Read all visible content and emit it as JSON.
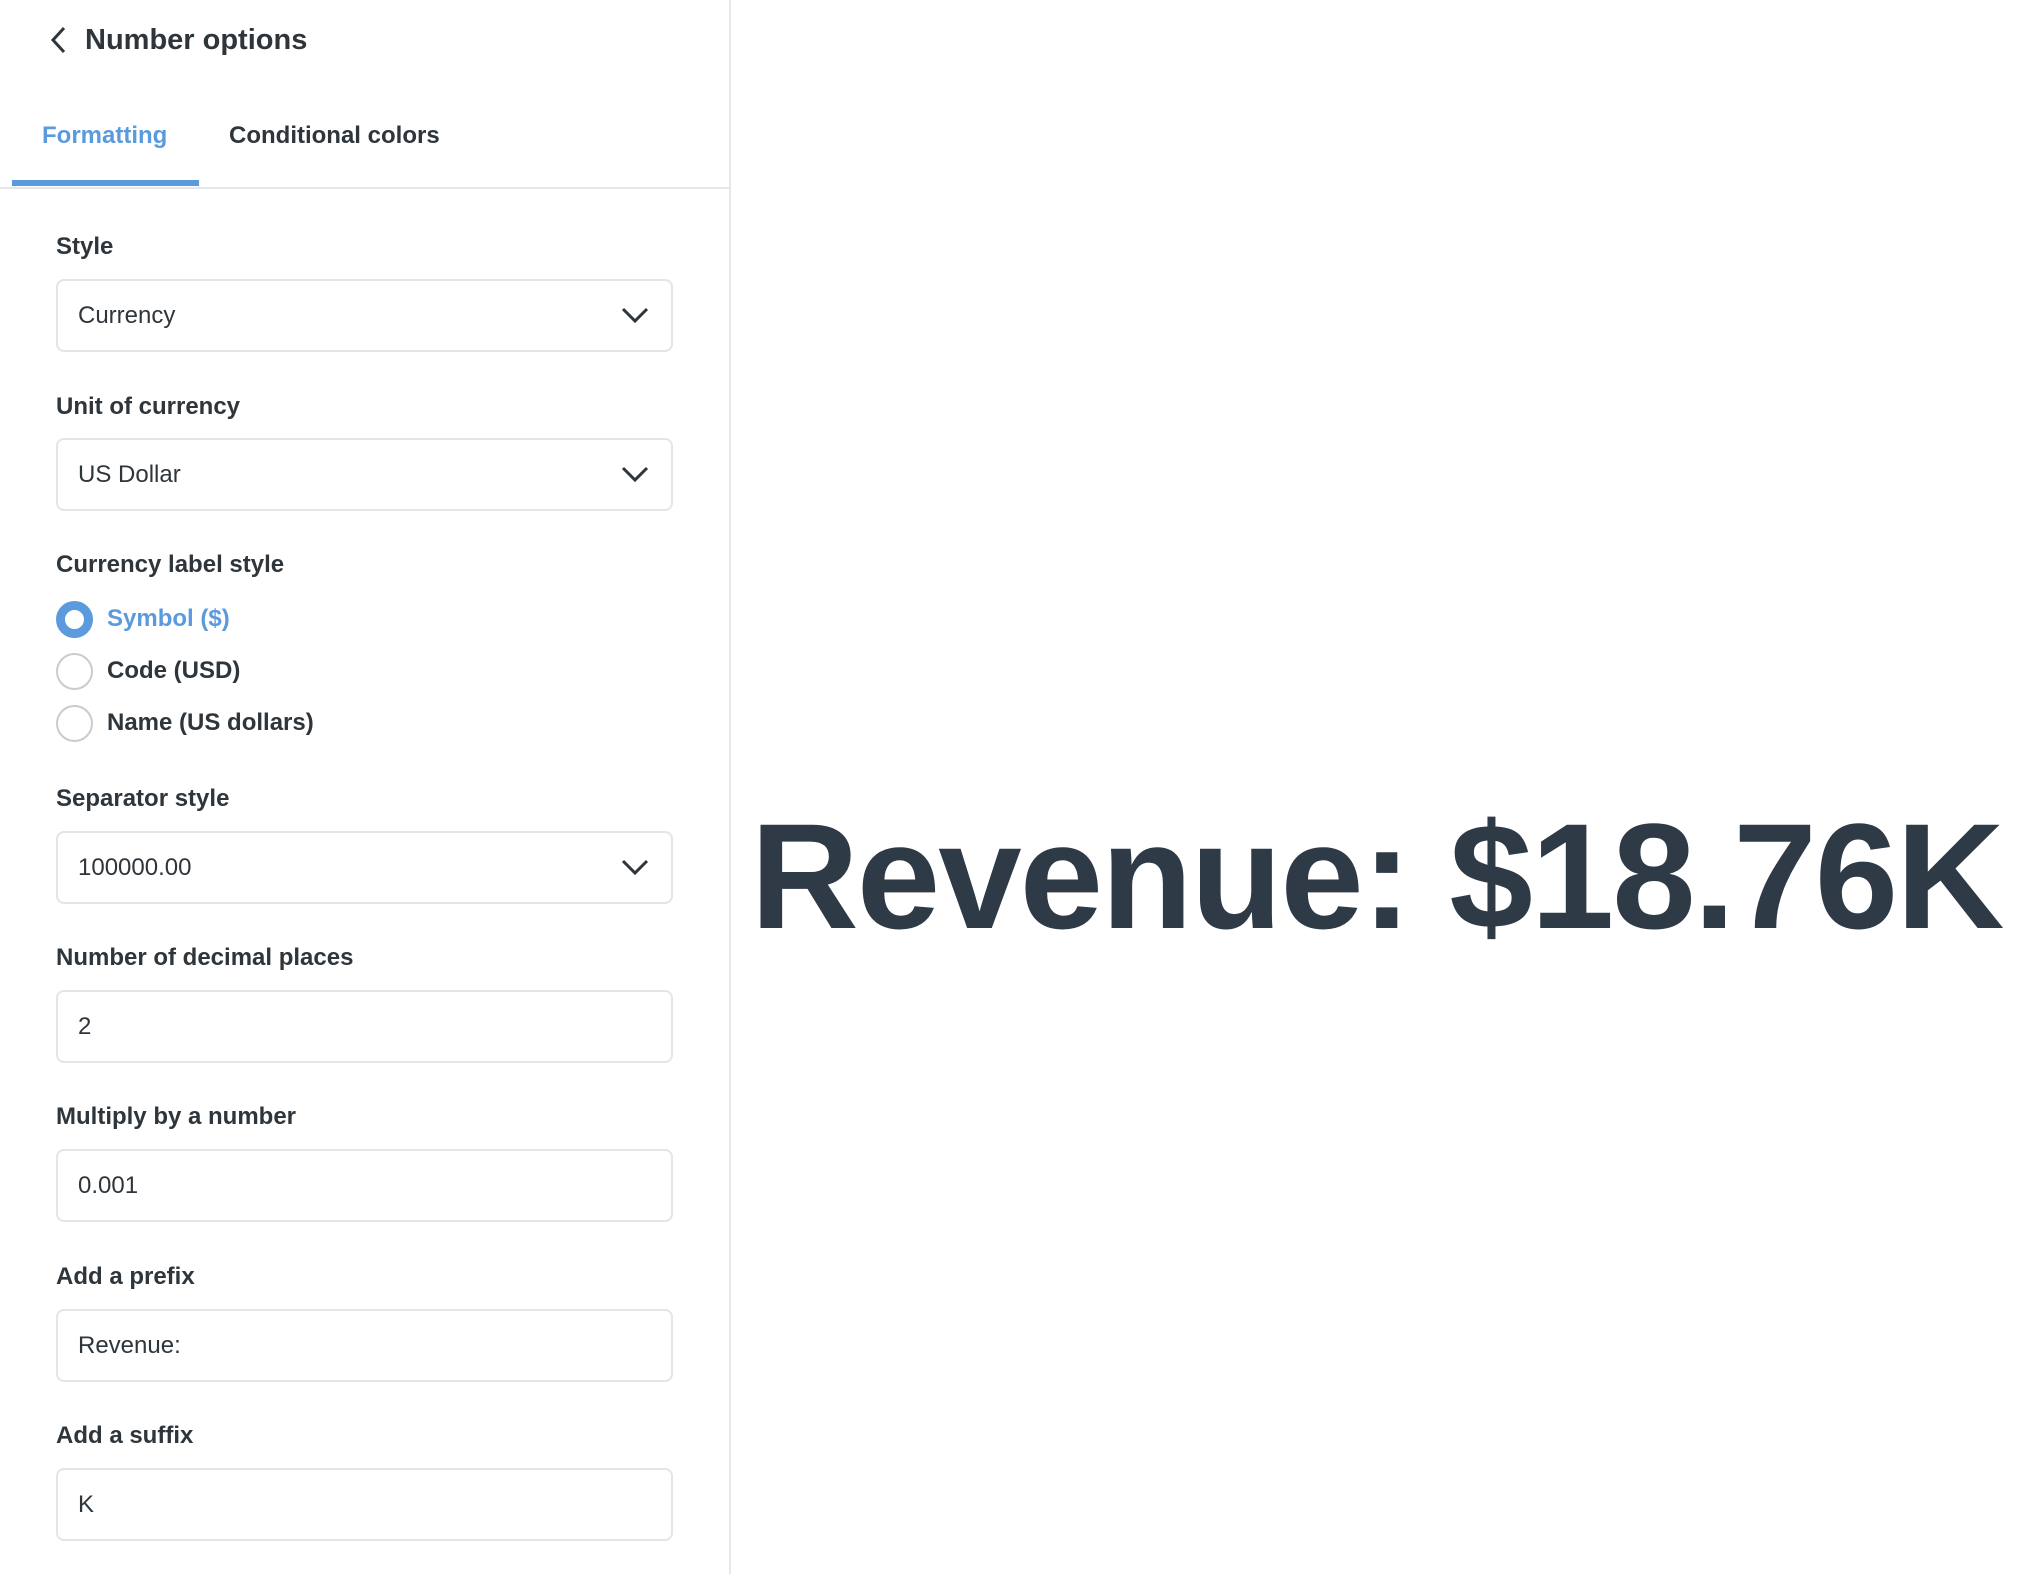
{
  "header": {
    "title": "Number options",
    "back_icon": "chevron-left-icon"
  },
  "tabs": [
    {
      "label": "Formatting",
      "active": true
    },
    {
      "label": "Conditional colors",
      "active": false
    }
  ],
  "accent_color": "#5b9bdd",
  "form": {
    "style": {
      "label": "Style",
      "value": "Currency"
    },
    "unit": {
      "label": "Unit of currency",
      "value": "US Dollar"
    },
    "currency_label_style": {
      "label": "Currency label style",
      "options": [
        {
          "label": "Symbol ($)",
          "checked": true
        },
        {
          "label": "Code (USD)",
          "checked": false
        },
        {
          "label": "Name (US dollars)",
          "checked": false
        }
      ]
    },
    "separator": {
      "label": "Separator style",
      "value": "100000.00"
    },
    "decimals": {
      "label": "Number of decimal places",
      "value": "2"
    },
    "multiply": {
      "label": "Multiply by a number",
      "value": "0.001"
    },
    "prefix": {
      "label": "Add a prefix",
      "value": "Revenue:"
    },
    "suffix": {
      "label": "Add a suffix",
      "value": "K"
    }
  },
  "preview": {
    "value": "Revenue: $18.76K"
  }
}
